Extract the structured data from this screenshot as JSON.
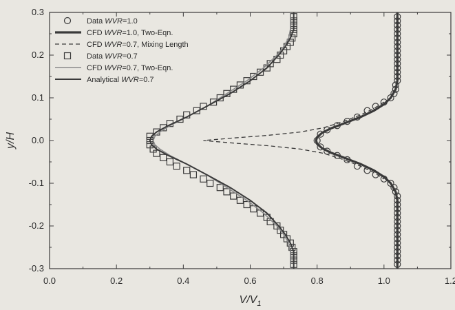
{
  "chart_data": {
    "type": "line",
    "xlabel": "V/V",
    "xlabel_sub": "1",
    "ylabel": "y/H",
    "xlim": [
      0.0,
      1.2
    ],
    "ylim": [
      -0.3,
      0.3
    ],
    "xticks": [
      "0.0",
      "0.2",
      "0.4",
      "0.6",
      "0.8",
      "1.0",
      "1.2"
    ],
    "yticks": [
      "0.3",
      "0.2",
      "0.1",
      "0.0",
      "-0.1",
      "-0.2",
      "-0.3"
    ],
    "grid": false,
    "legend_position": "top-left",
    "colors": {
      "ink": "#3a3a3a",
      "background": "#e9e7e1"
    },
    "series": [
      {
        "name": "Data WVR=1.0",
        "legend_parts": [
          "Data ",
          "WVR",
          "=1.0"
        ],
        "style": "marker-circle",
        "points": [
          [
            1.04,
            0.29
          ],
          [
            1.04,
            0.28
          ],
          [
            1.04,
            0.27
          ],
          [
            1.04,
            0.26
          ],
          [
            1.04,
            0.25
          ],
          [
            1.04,
            0.24
          ],
          [
            1.04,
            0.23
          ],
          [
            1.04,
            0.22
          ],
          [
            1.04,
            0.21
          ],
          [
            1.04,
            0.2
          ],
          [
            1.04,
            0.19
          ],
          [
            1.04,
            0.18
          ],
          [
            1.04,
            0.17
          ],
          [
            1.04,
            0.16
          ],
          [
            1.04,
            0.15
          ],
          [
            1.04,
            0.14
          ],
          [
            1.035,
            0.13
          ],
          [
            1.035,
            0.12
          ],
          [
            1.03,
            0.11
          ],
          [
            1.02,
            0.1
          ],
          [
            1.0,
            0.09
          ],
          [
            0.975,
            0.08
          ],
          [
            0.95,
            0.07
          ],
          [
            0.92,
            0.055
          ],
          [
            0.89,
            0.045
          ],
          [
            0.86,
            0.035
          ],
          [
            0.83,
            0.025
          ],
          [
            0.81,
            0.015
          ],
          [
            0.8,
            0.0
          ],
          [
            0.81,
            -0.015
          ],
          [
            0.83,
            -0.025
          ],
          [
            0.86,
            -0.035
          ],
          [
            0.89,
            -0.045
          ],
          [
            0.92,
            -0.06
          ],
          [
            0.95,
            -0.07
          ],
          [
            0.975,
            -0.08
          ],
          [
            1.0,
            -0.09
          ],
          [
            1.02,
            -0.1
          ],
          [
            1.03,
            -0.11
          ],
          [
            1.035,
            -0.12
          ],
          [
            1.04,
            -0.13
          ],
          [
            1.04,
            -0.14
          ],
          [
            1.04,
            -0.15
          ],
          [
            1.04,
            -0.16
          ],
          [
            1.04,
            -0.17
          ],
          [
            1.04,
            -0.18
          ],
          [
            1.04,
            -0.19
          ],
          [
            1.04,
            -0.2
          ],
          [
            1.04,
            -0.21
          ],
          [
            1.04,
            -0.22
          ],
          [
            1.04,
            -0.23
          ],
          [
            1.04,
            -0.24
          ],
          [
            1.04,
            -0.25
          ],
          [
            1.04,
            -0.26
          ],
          [
            1.04,
            -0.27
          ],
          [
            1.04,
            -0.28
          ],
          [
            1.04,
            -0.29
          ]
        ]
      },
      {
        "name": "CFD WVR=1.0, Two-Eqn.",
        "legend_parts": [
          "CFD ",
          "WVR",
          "=1.0, Two-Eqn."
        ],
        "style": "line-thick",
        "points": [
          [
            1.04,
            0.3
          ],
          [
            1.04,
            0.2
          ],
          [
            1.04,
            0.14
          ],
          [
            1.035,
            0.12
          ],
          [
            1.02,
            0.1
          ],
          [
            1.0,
            0.085
          ],
          [
            0.97,
            0.07
          ],
          [
            0.93,
            0.055
          ],
          [
            0.88,
            0.04
          ],
          [
            0.84,
            0.028
          ],
          [
            0.815,
            0.018
          ],
          [
            0.8,
            0.008
          ],
          [
            0.797,
            0.0
          ],
          [
            0.8,
            -0.008
          ],
          [
            0.815,
            -0.018
          ],
          [
            0.84,
            -0.028
          ],
          [
            0.88,
            -0.04
          ],
          [
            0.93,
            -0.055
          ],
          [
            0.97,
            -0.07
          ],
          [
            1.0,
            -0.085
          ],
          [
            1.02,
            -0.1
          ],
          [
            1.035,
            -0.12
          ],
          [
            1.04,
            -0.14
          ],
          [
            1.04,
            -0.2
          ],
          [
            1.04,
            -0.3
          ]
        ]
      },
      {
        "name": "CFD WVR=0.7, Mixing Length",
        "legend_parts": [
          "CFD ",
          "WVR",
          "=0.7, Mixing Length"
        ],
        "style": "line-dashed",
        "points": [
          [
            1.0,
            0.09
          ],
          [
            0.97,
            0.075
          ],
          [
            0.93,
            0.06
          ],
          [
            0.88,
            0.045
          ],
          [
            0.82,
            0.03
          ],
          [
            0.75,
            0.02
          ],
          [
            0.65,
            0.012
          ],
          [
            0.55,
            0.006
          ],
          [
            0.46,
            0.0
          ],
          [
            0.55,
            -0.006
          ],
          [
            0.65,
            -0.012
          ],
          [
            0.75,
            -0.02
          ],
          [
            0.82,
            -0.03
          ],
          [
            0.88,
            -0.045
          ],
          [
            0.93,
            -0.06
          ],
          [
            0.97,
            -0.075
          ],
          [
            1.0,
            -0.09
          ]
        ]
      },
      {
        "name": "Data WVR=0.7",
        "legend_parts": [
          "Data ",
          "WVR",
          "=0.7"
        ],
        "style": "marker-square",
        "points": [
          [
            0.73,
            0.29
          ],
          [
            0.73,
            0.28
          ],
          [
            0.73,
            0.27
          ],
          [
            0.73,
            0.26
          ],
          [
            0.73,
            0.25
          ],
          [
            0.725,
            0.24
          ],
          [
            0.72,
            0.23
          ],
          [
            0.71,
            0.22
          ],
          [
            0.7,
            0.21
          ],
          [
            0.69,
            0.2
          ],
          [
            0.68,
            0.19
          ],
          [
            0.66,
            0.18
          ],
          [
            0.65,
            0.17
          ],
          [
            0.63,
            0.16
          ],
          [
            0.61,
            0.15
          ],
          [
            0.59,
            0.14
          ],
          [
            0.57,
            0.13
          ],
          [
            0.55,
            0.12
          ],
          [
            0.53,
            0.11
          ],
          [
            0.51,
            0.1
          ],
          [
            0.49,
            0.09
          ],
          [
            0.46,
            0.08
          ],
          [
            0.44,
            0.07
          ],
          [
            0.41,
            0.06
          ],
          [
            0.39,
            0.05
          ],
          [
            0.36,
            0.04
          ],
          [
            0.34,
            0.03
          ],
          [
            0.32,
            0.02
          ],
          [
            0.3,
            0.01
          ],
          [
            0.3,
            0.0
          ],
          [
            0.3,
            -0.01
          ],
          [
            0.31,
            -0.02
          ],
          [
            0.32,
            -0.03
          ],
          [
            0.34,
            -0.04
          ],
          [
            0.36,
            -0.05
          ],
          [
            0.38,
            -0.06
          ],
          [
            0.41,
            -0.07
          ],
          [
            0.43,
            -0.08
          ],
          [
            0.46,
            -0.09
          ],
          [
            0.48,
            -0.1
          ],
          [
            0.51,
            -0.11
          ],
          [
            0.53,
            -0.12
          ],
          [
            0.55,
            -0.13
          ],
          [
            0.57,
            -0.14
          ],
          [
            0.59,
            -0.15
          ],
          [
            0.61,
            -0.16
          ],
          [
            0.63,
            -0.17
          ],
          [
            0.65,
            -0.18
          ],
          [
            0.66,
            -0.19
          ],
          [
            0.68,
            -0.2
          ],
          [
            0.69,
            -0.21
          ],
          [
            0.7,
            -0.22
          ],
          [
            0.71,
            -0.23
          ],
          [
            0.72,
            -0.24
          ],
          [
            0.725,
            -0.25
          ],
          [
            0.73,
            -0.26
          ],
          [
            0.73,
            -0.27
          ],
          [
            0.73,
            -0.28
          ],
          [
            0.73,
            -0.29
          ]
        ]
      },
      {
        "name": "CFD WVR=0.7, Two-Eqn.",
        "legend_parts": [
          "CFD ",
          "WVR",
          "=0.7, Two-Eqn."
        ],
        "style": "line-thin",
        "points": [
          [
            0.72,
            0.3
          ],
          [
            0.72,
            0.26
          ],
          [
            0.715,
            0.24
          ],
          [
            0.7,
            0.22
          ],
          [
            0.68,
            0.2
          ],
          [
            0.64,
            0.17
          ],
          [
            0.59,
            0.14
          ],
          [
            0.53,
            0.11
          ],
          [
            0.47,
            0.08
          ],
          [
            0.41,
            0.055
          ],
          [
            0.36,
            0.035
          ],
          [
            0.33,
            0.02
          ],
          [
            0.315,
            0.01
          ],
          [
            0.31,
            0.0
          ],
          [
            0.315,
            -0.01
          ],
          [
            0.33,
            -0.02
          ],
          [
            0.36,
            -0.035
          ],
          [
            0.41,
            -0.055
          ],
          [
            0.47,
            -0.08
          ],
          [
            0.53,
            -0.11
          ],
          [
            0.59,
            -0.14
          ],
          [
            0.64,
            -0.17
          ],
          [
            0.68,
            -0.2
          ],
          [
            0.7,
            -0.22
          ],
          [
            0.715,
            -0.24
          ],
          [
            0.72,
            -0.26
          ],
          [
            0.72,
            -0.3
          ]
        ]
      },
      {
        "name": "Analytical WVR=0.7",
        "legend_parts": [
          "Analytical ",
          "WVR",
          "=0.7"
        ],
        "style": "line-medium",
        "points": [
          [
            0.73,
            0.3
          ],
          [
            0.73,
            0.26
          ],
          [
            0.72,
            0.24
          ],
          [
            0.705,
            0.22
          ],
          [
            0.685,
            0.2
          ],
          [
            0.65,
            0.17
          ],
          [
            0.6,
            0.14
          ],
          [
            0.54,
            0.11
          ],
          [
            0.47,
            0.08
          ],
          [
            0.41,
            0.055
          ],
          [
            0.355,
            0.035
          ],
          [
            0.32,
            0.02
          ],
          [
            0.305,
            0.01
          ],
          [
            0.3,
            0.0
          ],
          [
            0.305,
            -0.01
          ],
          [
            0.32,
            -0.02
          ],
          [
            0.355,
            -0.035
          ],
          [
            0.41,
            -0.055
          ],
          [
            0.47,
            -0.08
          ],
          [
            0.54,
            -0.11
          ],
          [
            0.6,
            -0.14
          ],
          [
            0.65,
            -0.17
          ],
          [
            0.685,
            -0.2
          ],
          [
            0.705,
            -0.22
          ],
          [
            0.72,
            -0.24
          ],
          [
            0.73,
            -0.26
          ],
          [
            0.73,
            -0.3
          ]
        ]
      }
    ]
  }
}
